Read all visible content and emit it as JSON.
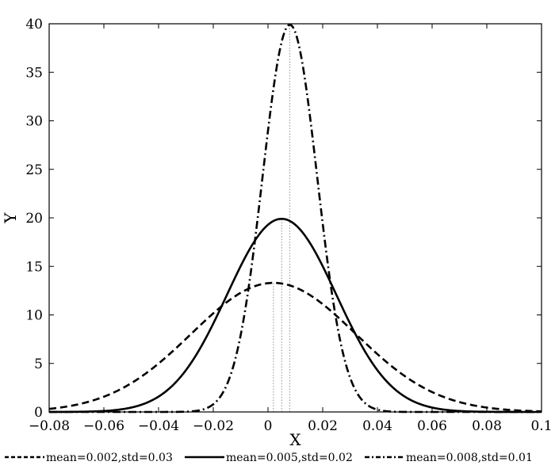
{
  "chart_data": {
    "type": "line",
    "title": "",
    "xlabel": "X",
    "ylabel": "Y",
    "xlim": [
      -0.08,
      0.1
    ],
    "ylim": [
      0,
      40
    ],
    "x_ticks": [
      -0.08,
      -0.06,
      -0.04,
      -0.02,
      0,
      0.02,
      0.04,
      0.06,
      0.08,
      0.1
    ],
    "x_tick_labels": [
      "−0.08",
      "−0.06",
      "−0.04",
      "−0.02",
      "0",
      "0.02",
      "0.04",
      "0.06",
      "0.08",
      "0.1"
    ],
    "y_ticks": [
      0,
      5,
      10,
      15,
      20,
      25,
      30,
      35,
      40
    ],
    "y_tick_labels": [
      "0",
      "5",
      "10",
      "15",
      "20",
      "25",
      "30",
      "35",
      "40"
    ],
    "grid": false,
    "legend_position": "below",
    "mean_markers": "dotted vertical lines at each mean",
    "series": [
      {
        "name": "mean=0.002,std=0.03",
        "mean": 0.002,
        "std": 0.03,
        "peak": 13.3,
        "line_style": "dashed",
        "color": "#000000"
      },
      {
        "name": "mean=0.005,std=0.02",
        "mean": 0.005,
        "std": 0.02,
        "peak": 19.9,
        "line_style": "solid",
        "color": "#000000"
      },
      {
        "name": "mean=0.008,std=0.01",
        "mean": 0.008,
        "std": 0.01,
        "peak": 39.9,
        "line_style": "dash-dot",
        "color": "#000000"
      }
    ]
  }
}
